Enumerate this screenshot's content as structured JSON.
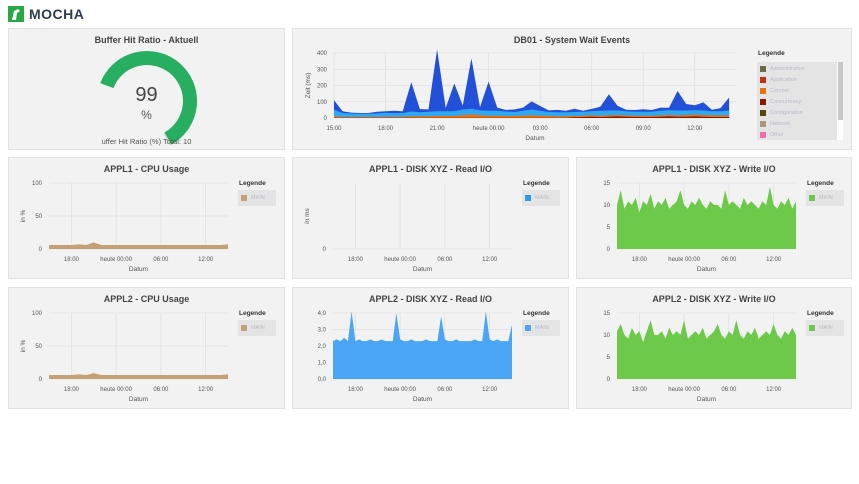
{
  "app": {
    "name": "MOCHA"
  },
  "gauge": {
    "title": "Buffer Hit Ratio - Aktuell",
    "value": 99,
    "unit": "%",
    "footer": "uffer Hit Ratio (%) Total: 10",
    "max": 100,
    "color": "#27ae60",
    "track_color": "#d8d8d8"
  },
  "legend_title": "Legende",
  "x_ticks_db": [
    "15:00",
    "18:00",
    "21:00",
    "heute 00:00",
    "03:00",
    "06:00",
    "09:00",
    "12:00"
  ],
  "x_ticks_small": [
    "18:00",
    "heute 00:00",
    "06:00",
    "12:00"
  ],
  "chart_data": [
    {
      "id": "db01",
      "type": "area",
      "stacked": true,
      "title": "DB01 - System Wait Events",
      "xlabel": "Datum",
      "ylabel": "Zeit (ms)",
      "x_start": "15:00",
      "x_step_hours": 0.5,
      "ylim": [
        0,
        400
      ],
      "y_ticks": [
        "0",
        "100",
        "200",
        "300",
        "400"
      ],
      "grid": true,
      "legend": "right",
      "legend_items": [
        {
          "name": "Administrative",
          "color": "#6b6b4a"
        },
        {
          "name": "Application",
          "color": "#c8300a"
        },
        {
          "name": "Commit",
          "color": "#e8710a"
        },
        {
          "name": "Concurrency",
          "color": "#8b1a00"
        },
        {
          "name": "Configuration",
          "color": "#5a4610"
        },
        {
          "name": "Network",
          "color": "#a89878"
        },
        {
          "name": "Other",
          "color": "#f06ca8"
        }
      ],
      "series": [
        {
          "name": "Concurrency",
          "color": "#8b1a00",
          "values": [
            2,
            1,
            1,
            1,
            1,
            1,
            1,
            1,
            1,
            2,
            2,
            2,
            2,
            2,
            2,
            2,
            2,
            2,
            2,
            2,
            2,
            2,
            2,
            2,
            2,
            2,
            2,
            2,
            4,
            6,
            8,
            6,
            8,
            10,
            8,
            6,
            6,
            6,
            8,
            10,
            8,
            8,
            10,
            8,
            6,
            6,
            6
          ]
        },
        {
          "name": "Commit",
          "color": "#e8710a",
          "values": [
            8,
            5,
            5,
            5,
            5,
            5,
            6,
            6,
            6,
            8,
            8,
            8,
            10,
            10,
            10,
            15,
            20,
            15,
            12,
            12,
            10,
            10,
            12,
            15,
            12,
            10,
            8,
            8,
            8,
            8,
            8,
            8,
            8,
            8,
            8,
            8,
            8,
            8,
            8,
            8,
            8,
            10,
            10,
            10,
            10,
            10,
            10
          ]
        },
        {
          "color": "#2ea8f0",
          "values": [
            40,
            25,
            22,
            20,
            20,
            22,
            25,
            22,
            24,
            30,
            25,
            28,
            30,
            30,
            30,
            35,
            35,
            30,
            30,
            30,
            28,
            25,
            30,
            35,
            30,
            25,
            25,
            25,
            25,
            25,
            25,
            30,
            30,
            28,
            25,
            25,
            25,
            25,
            28,
            30,
            30,
            28,
            28,
            28,
            25,
            25,
            30
          ]
        },
        {
          "color": "#2350d8",
          "values": [
            60,
            10,
            5,
            5,
            5,
            10,
            10,
            15,
            10,
            180,
            20,
            15,
            380,
            20,
            170,
            25,
            310,
            20,
            180,
            20,
            10,
            15,
            20,
            50,
            30,
            10,
            15,
            10,
            20,
            5,
            15,
            25,
            100,
            30,
            10,
            10,
            15,
            10,
            20,
            15,
            120,
            40,
            30,
            50,
            10,
            20,
            80
          ]
        }
      ]
    },
    {
      "id": "a1cpu",
      "type": "area",
      "title": "APPL1 - CPU Usage",
      "xlabel": "Datum",
      "ylabel": "in %",
      "ylim": [
        0,
        100
      ],
      "y_ticks": [
        "0",
        "50",
        "100"
      ],
      "x_start": "15:00",
      "x_step_hours": 1,
      "legend": "right",
      "series": [
        {
          "name": "MAIN",
          "color": "#c4a074",
          "values": [
            6,
            6,
            6,
            6,
            7,
            6,
            10,
            6,
            6,
            6,
            6,
            6,
            6,
            6,
            6,
            6,
            6,
            6,
            6,
            6,
            6,
            6,
            6,
            6,
            7
          ]
        }
      ]
    },
    {
      "id": "a1read",
      "type": "area",
      "title": "APPL1 - DISK XYZ - Read I/O",
      "xlabel": "Datum",
      "ylabel": "in ms",
      "ylim": [
        0,
        1
      ],
      "y_ticks": [
        "0"
      ],
      "x_start": "15:00",
      "x_step_hours": 0.5,
      "legend": "right",
      "series": [
        {
          "name": "MAIN",
          "color": "#2b9af3",
          "values": []
        }
      ]
    },
    {
      "id": "a1write",
      "type": "area",
      "title": "APPL1 - DISK XYZ - Write I/O",
      "xlabel": "Datum",
      "ylabel": "",
      "ylim": [
        0,
        18
      ],
      "y_ticks": [
        "0",
        "5",
        "10",
        "15"
      ],
      "x_start": "15:00",
      "x_step_hours": 0.5,
      "legend": "right",
      "series": [
        {
          "name": "MAIN",
          "color": "#6cc94a",
          "values": [
            12,
            16,
            11,
            13,
            12,
            14,
            10,
            13,
            12,
            15,
            11,
            13,
            12,
            14,
            11,
            12,
            13,
            16,
            12,
            11,
            13,
            12,
            14,
            12,
            11,
            13,
            12,
            12,
            11,
            16,
            12,
            13,
            12,
            11,
            14,
            12,
            13,
            12,
            11,
            13,
            12,
            17,
            12,
            11,
            13,
            12,
            14,
            11,
            13
          ]
        }
      ]
    },
    {
      "id": "a2cpu",
      "type": "area",
      "title": "APPL2 - CPU Usage",
      "xlabel": "Datum",
      "ylabel": "in %",
      "ylim": [
        0,
        100
      ],
      "y_ticks": [
        "0",
        "50",
        "100"
      ],
      "x_start": "15:00",
      "x_step_hours": 1,
      "legend": "right",
      "series": [
        {
          "name": "MAIN",
          "color": "#c4a074",
          "values": [
            6,
            6,
            6,
            6,
            7,
            6,
            9,
            6,
            6,
            6,
            6,
            6,
            6,
            6,
            6,
            6,
            6,
            6,
            6,
            6,
            6,
            6,
            6,
            6,
            7
          ]
        }
      ]
    },
    {
      "id": "a2read",
      "type": "area",
      "title": "APPL2 - DISK XYZ - Read I/O",
      "xlabel": "Datum",
      "ylabel": "",
      "ylim": [
        0,
        4
      ],
      "y_ticks": [
        "0,0",
        "1,0",
        "2,0",
        "3,0",
        "4,0"
      ],
      "x_start": "15:00",
      "x_step_hours": 0.5,
      "legend": "right",
      "series": [
        {
          "name": "MAIN",
          "color": "#4aa6f5",
          "values": [
            2.3,
            2.4,
            2.3,
            2.5,
            2.3,
            4.1,
            2.3,
            2.4,
            2.3,
            2.3,
            2.4,
            2.3,
            2.3,
            2.4,
            2.3,
            2.3,
            2.3,
            4.0,
            2.4,
            2.3,
            2.3,
            2.4,
            2.3,
            2.3,
            2.3,
            2.4,
            2.3,
            2.3,
            2.3,
            3.8,
            2.4,
            2.3,
            2.3,
            2.4,
            2.3,
            2.3,
            2.3,
            2.3,
            2.4,
            2.3,
            2.3,
            4.1,
            2.4,
            2.3,
            2.4,
            2.3,
            2.3,
            2.3,
            3.3
          ]
        }
      ]
    },
    {
      "id": "a2write",
      "type": "area",
      "title": "APPL2 - DISK XYZ - Write I/O",
      "xlabel": "Datum",
      "ylabel": "",
      "ylim": [
        0,
        18
      ],
      "y_ticks": [
        "0",
        "5",
        "10",
        "15"
      ],
      "x_start": "15:00",
      "x_step_hours": 0.5,
      "legend": "right",
      "series": [
        {
          "name": "MAIN",
          "color": "#6cc94a",
          "values": [
            13,
            15,
            12,
            11,
            14,
            12,
            13,
            10,
            13,
            16,
            12,
            12,
            13,
            11,
            14,
            12,
            13,
            12,
            16,
            11,
            12,
            13,
            12,
            14,
            11,
            12,
            13,
            15,
            12,
            11,
            13,
            12,
            16,
            12,
            11,
            13,
            12,
            14,
            11,
            12,
            13,
            12,
            15,
            12,
            11,
            13,
            12,
            14,
            12
          ]
        }
      ]
    }
  ]
}
